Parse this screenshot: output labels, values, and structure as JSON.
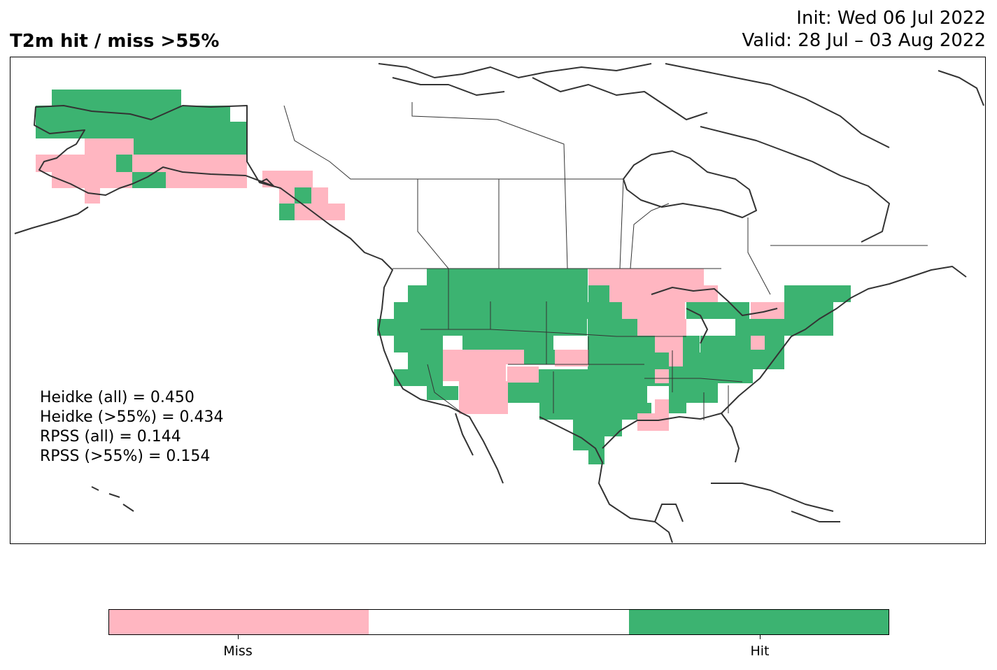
{
  "header": {
    "title": "T2m hit / miss  >55%",
    "init": "Init: Wed 06 Jul 2022",
    "valid": "Valid: 28 Jul – 03 Aug 2022"
  },
  "scores": [
    "Heidke (all) = 0.450",
    "Heidke (>55%) = 0.434",
    "RPSS (all) = 0.144",
    "RPSS (>55%) = 0.154"
  ],
  "legend": {
    "categories": [
      {
        "label": "Miss",
        "color": "#ffb6c1"
      },
      {
        "label": "",
        "color": "#ffffff"
      },
      {
        "label": "Hit",
        "color": "#3cb371"
      }
    ],
    "tick_labels": [
      "Miss",
      "Hit"
    ]
  },
  "colors": {
    "miss": "#ffb6c1",
    "hit": "#3cb371",
    "coastline": "#333333"
  }
}
